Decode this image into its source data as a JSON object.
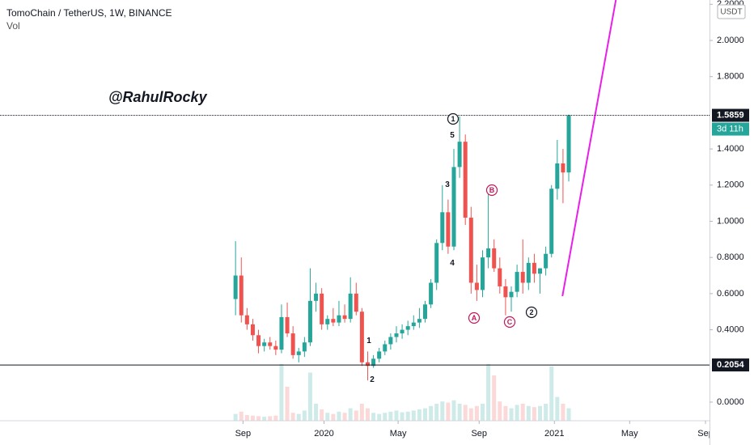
{
  "header": {
    "symbol": "TomoChain / TetherUS, 1W, BINANCE",
    "indicator": "Vol",
    "currency": "USDT"
  },
  "chart_data": {
    "type": "candlestick",
    "open": [
      0.57,
      0.7,
      0.48,
      0.43,
      0.37,
      0.31,
      0.33,
      0.31,
      0.29,
      0.47,
      0.38,
      0.26,
      0.28,
      0.33,
      0.56,
      0.6,
      0.43,
      0.46,
      0.44,
      0.48,
      0.46,
      0.6,
      0.5,
      0.22,
      0.2,
      0.24,
      0.28,
      0.32,
      0.36,
      0.38,
      0.4,
      0.42,
      0.44,
      0.46,
      0.54,
      0.66,
      0.88,
      1.05,
      0.86,
      1.3,
      1.44,
      1.02,
      0.66,
      0.62,
      0.8,
      0.85,
      0.74,
      0.64,
      0.58,
      0.61,
      0.72,
      0.66,
      0.77,
      0.71,
      0.74,
      0.82,
      1.18,
      1.32,
      1.27
    ],
    "high": [
      0.89,
      0.8,
      0.52,
      0.46,
      0.4,
      0.35,
      0.36,
      0.34,
      0.54,
      0.55,
      0.42,
      0.3,
      0.36,
      0.74,
      0.66,
      0.63,
      0.48,
      0.52,
      0.56,
      0.54,
      0.69,
      0.66,
      0.52,
      0.28,
      0.26,
      0.3,
      0.34,
      0.38,
      0.42,
      0.43,
      0.45,
      0.48,
      0.52,
      0.56,
      0.68,
      0.9,
      1.2,
      1.12,
      1.4,
      1.58,
      1.48,
      1.08,
      0.76,
      0.84,
      1.15,
      0.9,
      0.8,
      0.68,
      0.64,
      0.76,
      0.9,
      0.8,
      0.82,
      0.74,
      0.86,
      1.2,
      1.45,
      1.4,
      1.59
    ],
    "low": [
      0.48,
      0.44,
      0.4,
      0.34,
      0.27,
      0.28,
      0.29,
      0.26,
      0.27,
      0.36,
      0.24,
      0.22,
      0.25,
      0.31,
      0.5,
      0.4,
      0.4,
      0.42,
      0.42,
      0.44,
      0.44,
      0.48,
      0.2,
      0.12,
      0.19,
      0.22,
      0.26,
      0.29,
      0.33,
      0.35,
      0.37,
      0.4,
      0.41,
      0.44,
      0.52,
      0.62,
      0.84,
      0.82,
      0.84,
      1.24,
      0.98,
      0.6,
      0.56,
      0.58,
      0.74,
      0.72,
      0.6,
      0.48,
      0.5,
      0.58,
      0.6,
      0.62,
      0.66,
      0.6,
      0.7,
      0.8,
      1.12,
      1.1,
      1.22
    ],
    "close": [
      0.7,
      0.48,
      0.43,
      0.37,
      0.31,
      0.33,
      0.31,
      0.29,
      0.47,
      0.38,
      0.26,
      0.28,
      0.33,
      0.56,
      0.6,
      0.43,
      0.46,
      0.44,
      0.48,
      0.46,
      0.6,
      0.5,
      0.22,
      0.2,
      0.24,
      0.28,
      0.32,
      0.36,
      0.38,
      0.4,
      0.42,
      0.44,
      0.46,
      0.54,
      0.66,
      0.88,
      1.05,
      0.86,
      1.3,
      1.44,
      1.02,
      0.66,
      0.62,
      0.8,
      0.85,
      0.74,
      0.64,
      0.58,
      0.61,
      0.72,
      0.66,
      0.77,
      0.71,
      0.74,
      0.82,
      1.18,
      1.32,
      1.27,
      1.5859
    ],
    "volume": [
      12,
      16,
      10,
      9,
      8,
      7,
      8,
      9,
      100,
      60,
      14,
      12,
      18,
      85,
      30,
      20,
      14,
      12,
      16,
      14,
      22,
      18,
      30,
      22,
      14,
      12,
      14,
      16,
      18,
      15,
      16,
      18,
      20,
      22,
      26,
      30,
      34,
      32,
      36,
      30,
      28,
      22,
      26,
      30,
      100,
      80,
      34,
      26,
      22,
      28,
      30,
      26,
      24,
      26,
      30,
      96,
      42,
      30,
      22
    ],
    "colors": {
      "up": "#26a69a",
      "down": "#ef5350"
    },
    "xlim": [
      -41,
      82.5
    ],
    "xticks": [
      {
        "value": 1.3,
        "label": "Sep"
      },
      {
        "value": 15.4,
        "label": "2020"
      },
      {
        "value": 28.3,
        "label": "May"
      },
      {
        "value": 42.4,
        "label": "Sep"
      },
      {
        "value": 55.5,
        "label": "2021"
      },
      {
        "value": 68.6,
        "label": "May"
      },
      {
        "value": 81.8,
        "label": "Sep"
      }
    ],
    "ylim": [
      -0.103,
      2.2237
    ],
    "yticks": [
      {
        "value": 0,
        "label": "0.0000"
      },
      {
        "value": 0.4,
        "label": "0.4000"
      },
      {
        "value": 0.6,
        "label": "0.6000"
      },
      {
        "value": 0.8,
        "label": "0.8000"
      },
      {
        "value": 1,
        "label": "1.0000"
      },
      {
        "value": 1.2,
        "label": "1.2000"
      },
      {
        "value": 1.4,
        "label": "1.4000"
      },
      {
        "value": 1.8,
        "label": "1.8000"
      },
      {
        "value": 2,
        "label": "2.0000"
      },
      {
        "value": 2.2,
        "label": "2.2000"
      }
    ],
    "vlim": [
      0,
      100
    ],
    "price_lines": [
      {
        "value": 1.5859,
        "style": "dotted"
      },
      {
        "value": 0.2054,
        "style": "solid"
      }
    ],
    "countdown": "3d 11h",
    "trend_line": {
      "color": "#e91ee9",
      "x": [
        56.9,
        66.2
      ],
      "y": [
        0.586,
        2.2237
      ]
    },
    "watermark": "@RahulRocky",
    "annotations": [
      {
        "text": "1",
        "circled": true,
        "color": "#131722"
      },
      {
        "text": "5",
        "circled": false,
        "color": "#131722"
      },
      {
        "text": "3",
        "circled": false,
        "color": "#131722"
      },
      {
        "text": "4",
        "circled": false,
        "color": "#131722"
      },
      {
        "text": "1",
        "circled": false,
        "color": "#131722"
      },
      {
        "text": "2",
        "circled": false,
        "color": "#131722"
      },
      {
        "text": "B",
        "circled": true,
        "color": "#c2185b"
      },
      {
        "text": "A",
        "circled": true,
        "color": "#c2185b"
      },
      {
        "text": "C",
        "circled": true,
        "color": "#c2185b"
      },
      {
        "text": "2",
        "circled": true,
        "color": "#131722"
      }
    ]
  }
}
